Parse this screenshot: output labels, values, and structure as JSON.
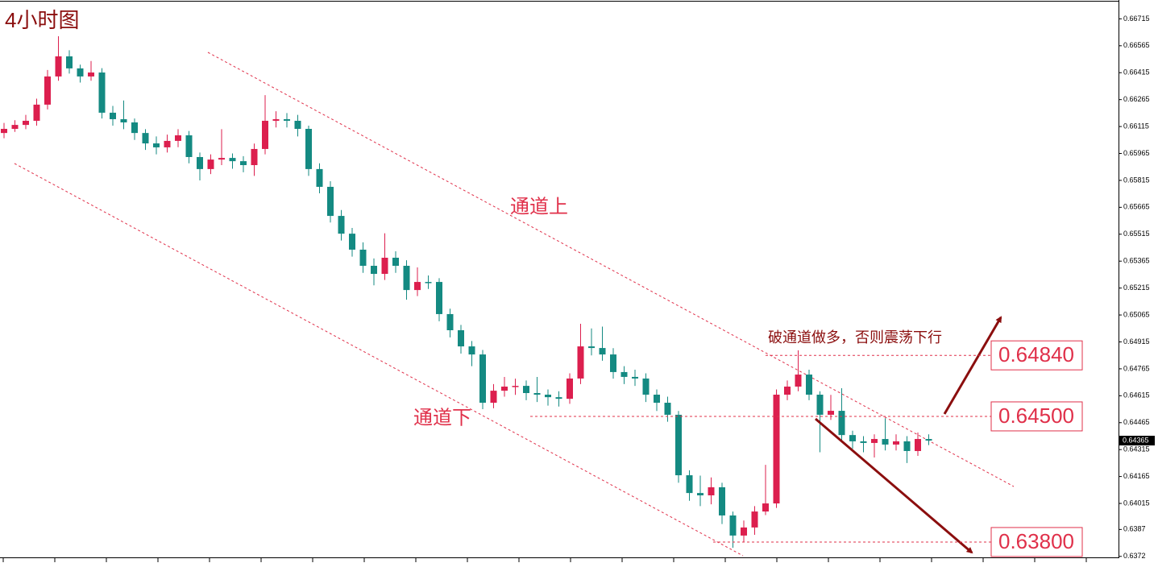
{
  "chart_data": {
    "type": "candlestick",
    "title": "4小时图",
    "annotations": [
      "通道上",
      "通道下",
      "破通道做多，否则震荡下行"
    ],
    "bull_color": "#dc1f4e",
    "bear_color": "#148a82",
    "open": [
      0.66079,
      0.66102,
      0.66124,
      0.66147,
      0.66237,
      0.66394,
      0.66506,
      0.66439,
      0.66394,
      0.66416,
      0.66192,
      0.66156,
      0.66138,
      0.66079,
      0.66021,
      0.65999,
      0.66035,
      0.66066,
      0.65945,
      0.65878,
      0.65931,
      0.6594,
      0.65922,
      0.659,
      0.6599,
      0.66147,
      0.66156,
      0.66147,
      0.66102,
      0.65878,
      0.65779,
      0.65617,
      0.65518,
      0.65429,
      0.65339,
      0.65294,
      0.65384,
      0.65339,
      0.65204,
      0.65249,
      0.65249,
      0.6507,
      0.6498,
      0.6489,
      0.64845,
      0.64576,
      0.64643,
      0.64666,
      0.6467,
      0.6463,
      0.64621,
      0.64607,
      0.64598,
      0.64711,
      0.6489,
      0.64881,
      0.64845,
      0.64747,
      0.6472,
      0.64711,
      0.64621,
      0.64576,
      0.64509,
      0.64172,
      0.64073,
      0.6406,
      0.64105,
      0.63948,
      0.63836,
      0.63881,
      0.6397,
      0.64015,
      0.64621,
      0.64666,
      0.64733,
      0.64621,
      0.64509,
      0.64531,
      0.64396,
      0.64361,
      0.64352,
      0.64374,
      0.64343,
      0.64361,
      0.64307,
      0.64374
    ],
    "high": [
      0.66135,
      0.6615,
      0.6618,
      0.6627,
      0.6643,
      0.66618,
      0.6654,
      0.6646,
      0.6648,
      0.6644,
      0.6623,
      0.6626,
      0.6616,
      0.661,
      0.6606,
      0.6607,
      0.661,
      0.6609,
      0.6597,
      0.6596,
      0.661,
      0.65965,
      0.6595,
      0.6602,
      0.6629,
      0.662,
      0.6619,
      0.6618,
      0.6612,
      0.6591,
      0.6581,
      0.6565,
      0.6555,
      0.6547,
      0.6538,
      0.6552,
      0.6542,
      0.6537,
      0.6533,
      0.65285,
      0.6527,
      0.651,
      0.6501,
      0.6492,
      0.6487,
      0.6468,
      0.6472,
      0.6471,
      0.647,
      0.6472,
      0.6465,
      0.6464,
      0.6474,
      0.65016,
      0.6499,
      0.65,
      0.6488,
      0.6478,
      0.6476,
      0.6474,
      0.6465,
      0.6461,
      0.6453,
      0.642,
      0.6417,
      0.6416,
      0.6413,
      0.6397,
      0.6392,
      0.64,
      0.6423,
      0.6465,
      0.647,
      0.64868,
      0.6476,
      0.6464,
      0.6462,
      0.64657,
      0.6442,
      0.6439,
      0.644,
      0.6449,
      0.644,
      0.6439,
      0.6441,
      0.644
    ],
    "low": [
      0.6605,
      0.66085,
      0.661,
      0.6612,
      0.6621,
      0.6637,
      0.6641,
      0.6636,
      0.6637,
      0.6616,
      0.6612,
      0.661,
      0.6604,
      0.65985,
      0.6596,
      0.6597,
      0.66,
      0.6591,
      0.65815,
      0.6585,
      0.659,
      0.6588,
      0.6586,
      0.6584,
      0.6596,
      0.6611,
      0.6611,
      0.6606,
      0.6584,
      0.65743,
      0.6558,
      0.6548,
      0.6539,
      0.653,
      0.6523,
      0.6526,
      0.653,
      0.6515,
      0.6517,
      0.6521,
      0.6503,
      0.6494,
      0.6485,
      0.6478,
      0.6454,
      0.64545,
      0.6461,
      0.6462,
      0.6459,
      0.6458,
      0.6456,
      0.64555,
      0.6457,
      0.6468,
      0.6484,
      0.6481,
      0.6471,
      0.6468,
      0.6467,
      0.6458,
      0.6453,
      0.6447,
      0.6413,
      0.6403,
      0.64,
      0.6401,
      0.639,
      0.63768,
      0.638,
      0.6384,
      0.6395,
      0.6399,
      0.6459,
      0.6464,
      0.6459,
      0.643,
      0.6448,
      0.6436,
      0.6432,
      0.643,
      0.64271,
      0.6431,
      0.6431,
      0.6424,
      0.6428,
      0.6434
    ],
    "close": [
      0.66102,
      0.66124,
      0.66147,
      0.66237,
      0.66394,
      0.66506,
      0.66439,
      0.66394,
      0.66416,
      0.66192,
      0.66156,
      0.66138,
      0.66079,
      0.66021,
      0.65999,
      0.66035,
      0.66066,
      0.65945,
      0.65878,
      0.65931,
      0.6594,
      0.65922,
      0.659,
      0.6599,
      0.66147,
      0.66156,
      0.66147,
      0.66102,
      0.65878,
      0.65779,
      0.65617,
      0.65518,
      0.65429,
      0.65339,
      0.65294,
      0.65384,
      0.65339,
      0.65204,
      0.65249,
      0.65249,
      0.6507,
      0.6498,
      0.6489,
      0.64845,
      0.64576,
      0.64643,
      0.64666,
      0.6467,
      0.6463,
      0.64621,
      0.64607,
      0.64598,
      0.64711,
      0.6489,
      0.64881,
      0.64845,
      0.64747,
      0.6472,
      0.64711,
      0.64621,
      0.64576,
      0.64509,
      0.64172,
      0.64073,
      0.6406,
      0.64105,
      0.63948,
      0.63836,
      0.63881,
      0.6397,
      0.64015,
      0.64621,
      0.64666,
      0.64733,
      0.64621,
      0.64509,
      0.64531,
      0.64396,
      0.64361,
      0.64352,
      0.64374,
      0.64343,
      0.64361,
      0.64307,
      0.64374,
      0.64365
    ],
    "ylim": [
      0.6371,
      0.6682
    ],
    "yticks": [
      0.66715,
      0.66565,
      0.66415,
      0.66265,
      0.66115,
      0.65965,
      0.65815,
      0.65665,
      0.65515,
      0.65365,
      0.65215,
      0.65065,
      0.64915,
      0.64765,
      0.64615,
      0.64465,
      0.64315,
      0.64165,
      0.64015,
      0.6387,
      0.6372
    ],
    "levels": [
      {
        "value": 0.6484,
        "label": "0.64840"
      },
      {
        "value": 0.645,
        "label": "0.64500"
      },
      {
        "value": 0.638,
        "label": "0.63800"
      }
    ],
    "current_price": 0.64365
  }
}
